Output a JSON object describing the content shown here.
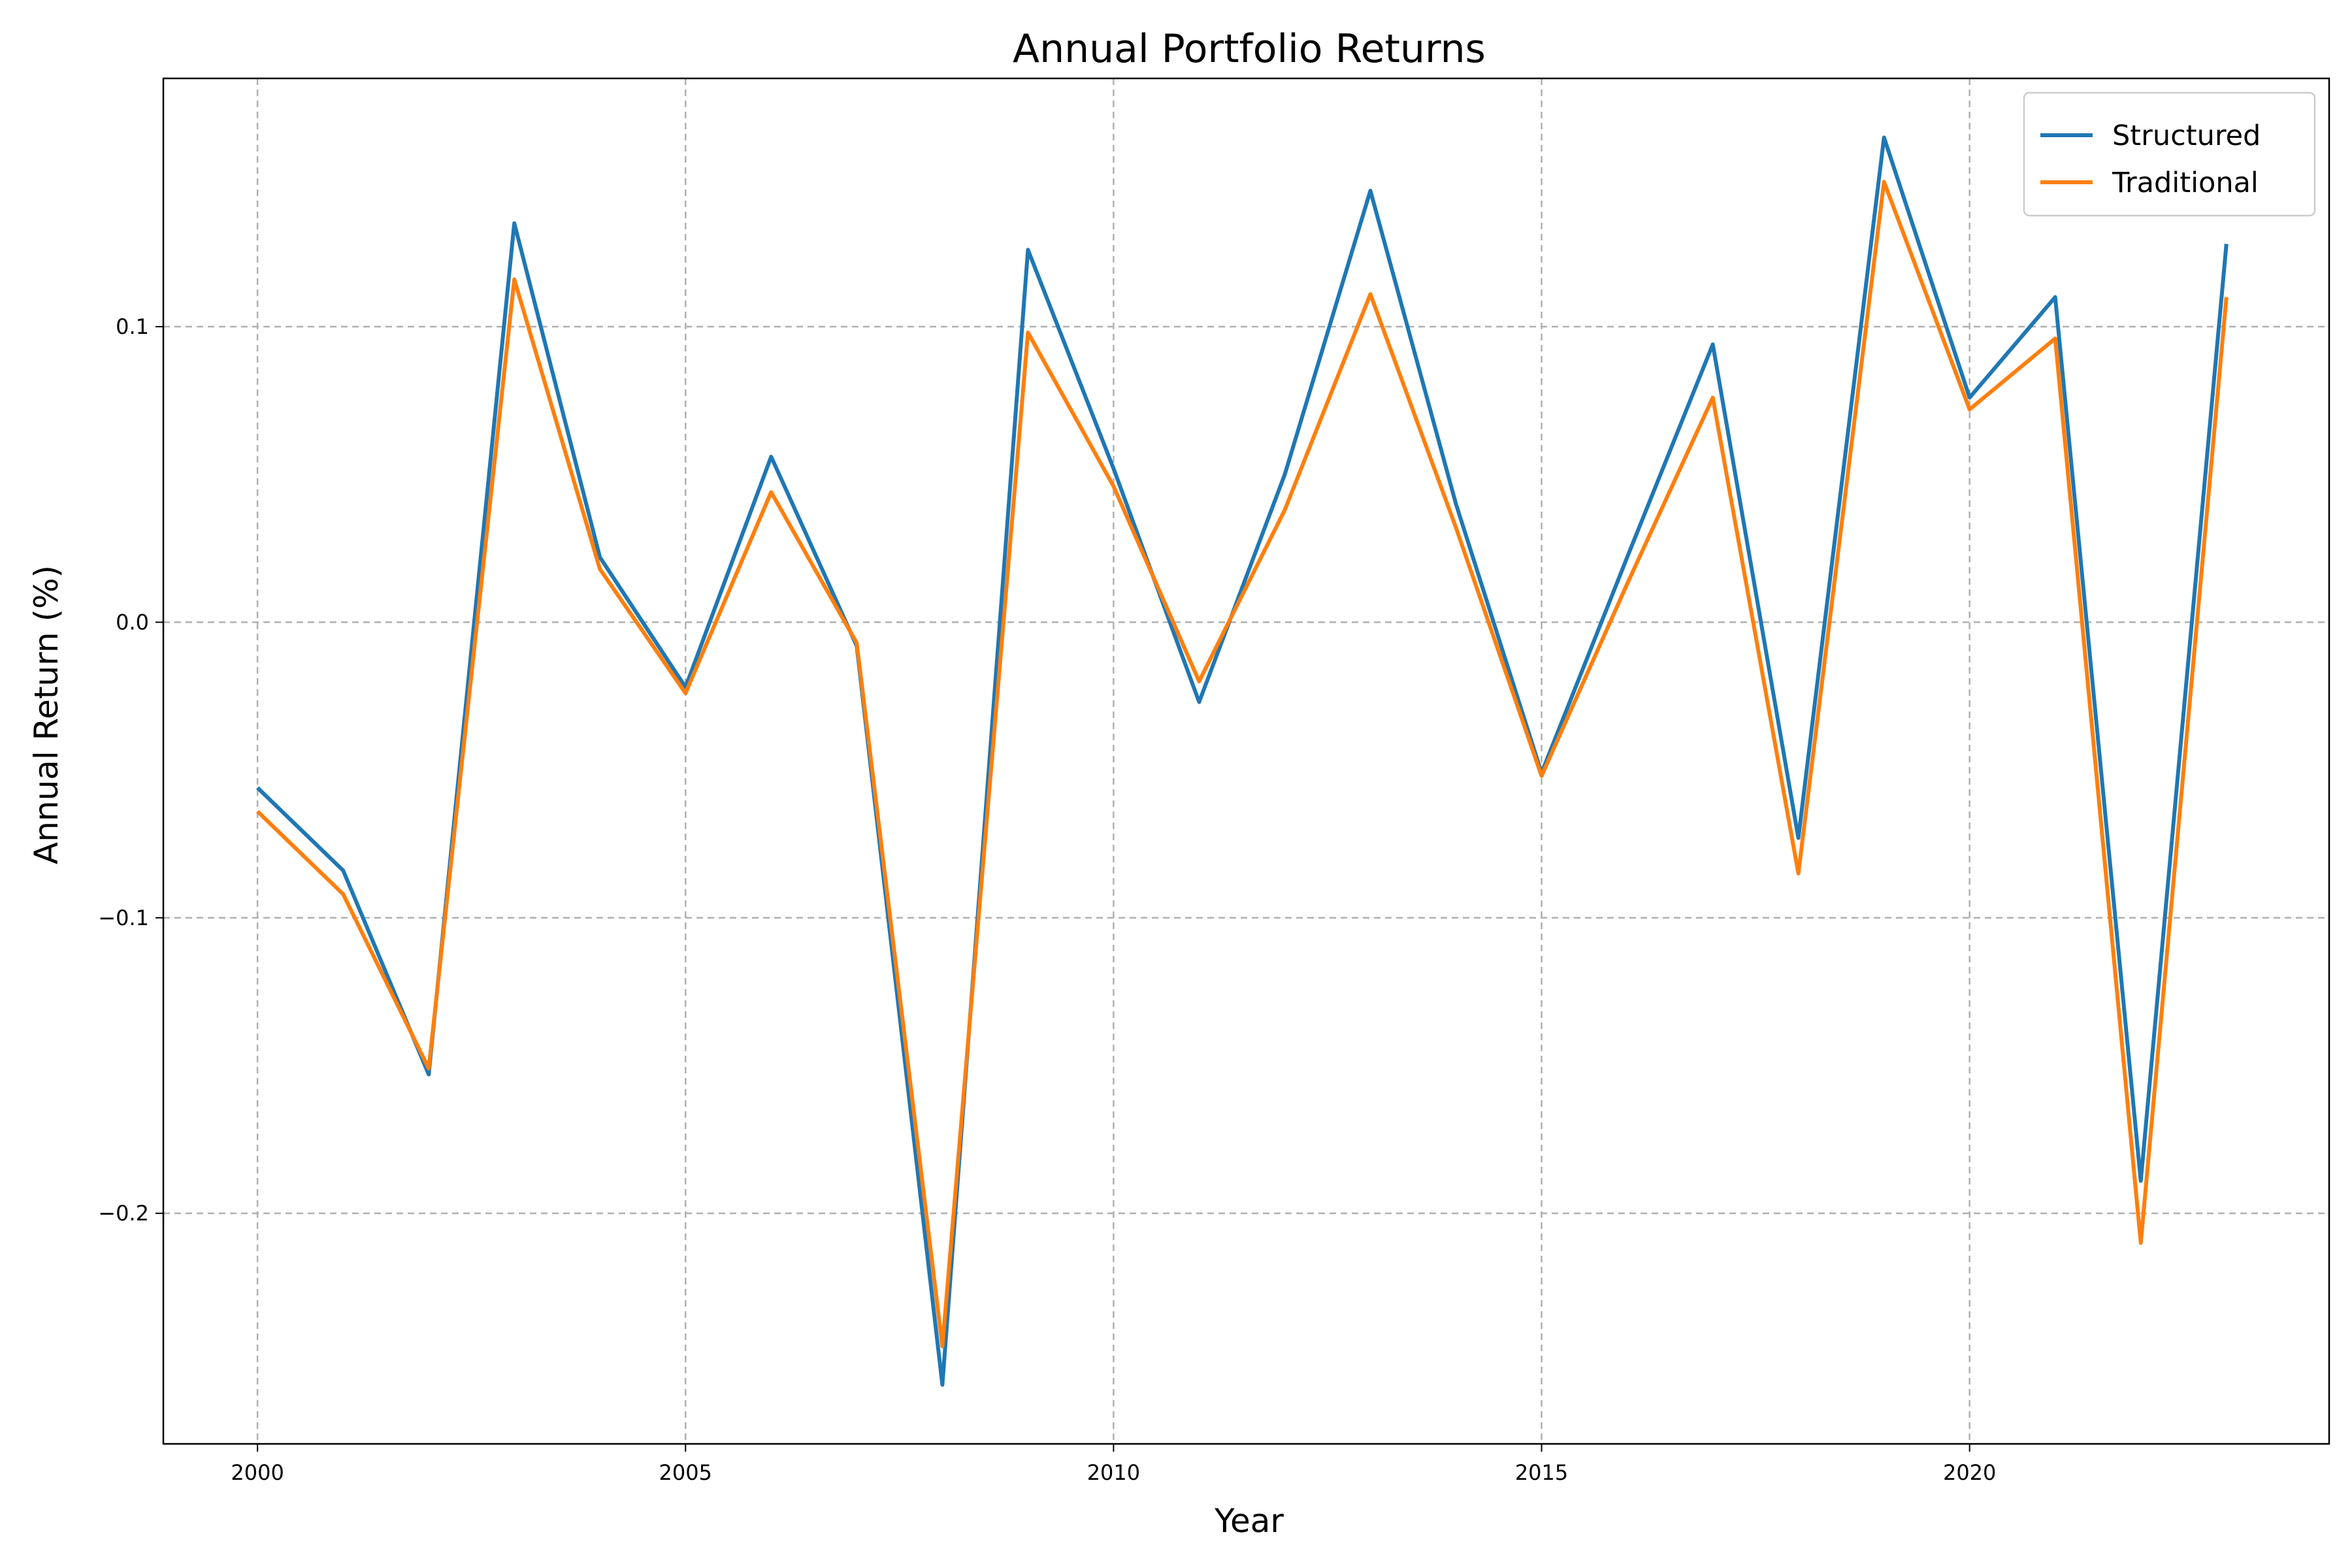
{
  "chart_data": {
    "type": "line",
    "title": "Annual Portfolio Returns",
    "xlabel": "Year",
    "ylabel": "Annual Return (%)",
    "x": [
      2000,
      2001,
      2002,
      2003,
      2004,
      2005,
      2006,
      2007,
      2008,
      2009,
      2010,
      2011,
      2012,
      2013,
      2014,
      2015,
      2016,
      2017,
      2018,
      2019,
      2020,
      2021,
      2022,
      2023
    ],
    "series": [
      {
        "name": "Structured",
        "color": "#1f77b4",
        "values": [
          -0.056,
          -0.084,
          -0.153,
          0.135,
          0.022,
          -0.022,
          0.056,
          -0.008,
          -0.258,
          0.126,
          0.052,
          -0.027,
          0.05,
          0.146,
          0.04,
          -0.051,
          0.022,
          0.094,
          -0.073,
          0.164,
          0.076,
          0.11,
          -0.189,
          0.128
        ]
      },
      {
        "name": "Traditional",
        "color": "#ff7f0e",
        "values": [
          -0.064,
          -0.092,
          -0.151,
          0.116,
          0.018,
          -0.024,
          0.044,
          -0.007,
          -0.245,
          0.098,
          0.046,
          -0.02,
          0.038,
          0.111,
          0.032,
          -0.052,
          0.013,
          0.076,
          -0.085,
          0.149,
          0.072,
          0.096,
          -0.21,
          0.11
        ]
      }
    ],
    "xlim": [
      1998.9,
      2024.2
    ],
    "ylim": [
      -0.278,
      0.184
    ],
    "xticks": [
      2000,
      2005,
      2010,
      2015,
      2020
    ],
    "xtick_labels": [
      "2000",
      "2005",
      "2010",
      "2015",
      "2020"
    ],
    "yticks": [
      -0.2,
      -0.1,
      0.0,
      0.1
    ],
    "ytick_labels": [
      "−0.2",
      "−0.1",
      "0.0",
      "0.1"
    ],
    "grid": true,
    "legend_position": "top-right"
  }
}
